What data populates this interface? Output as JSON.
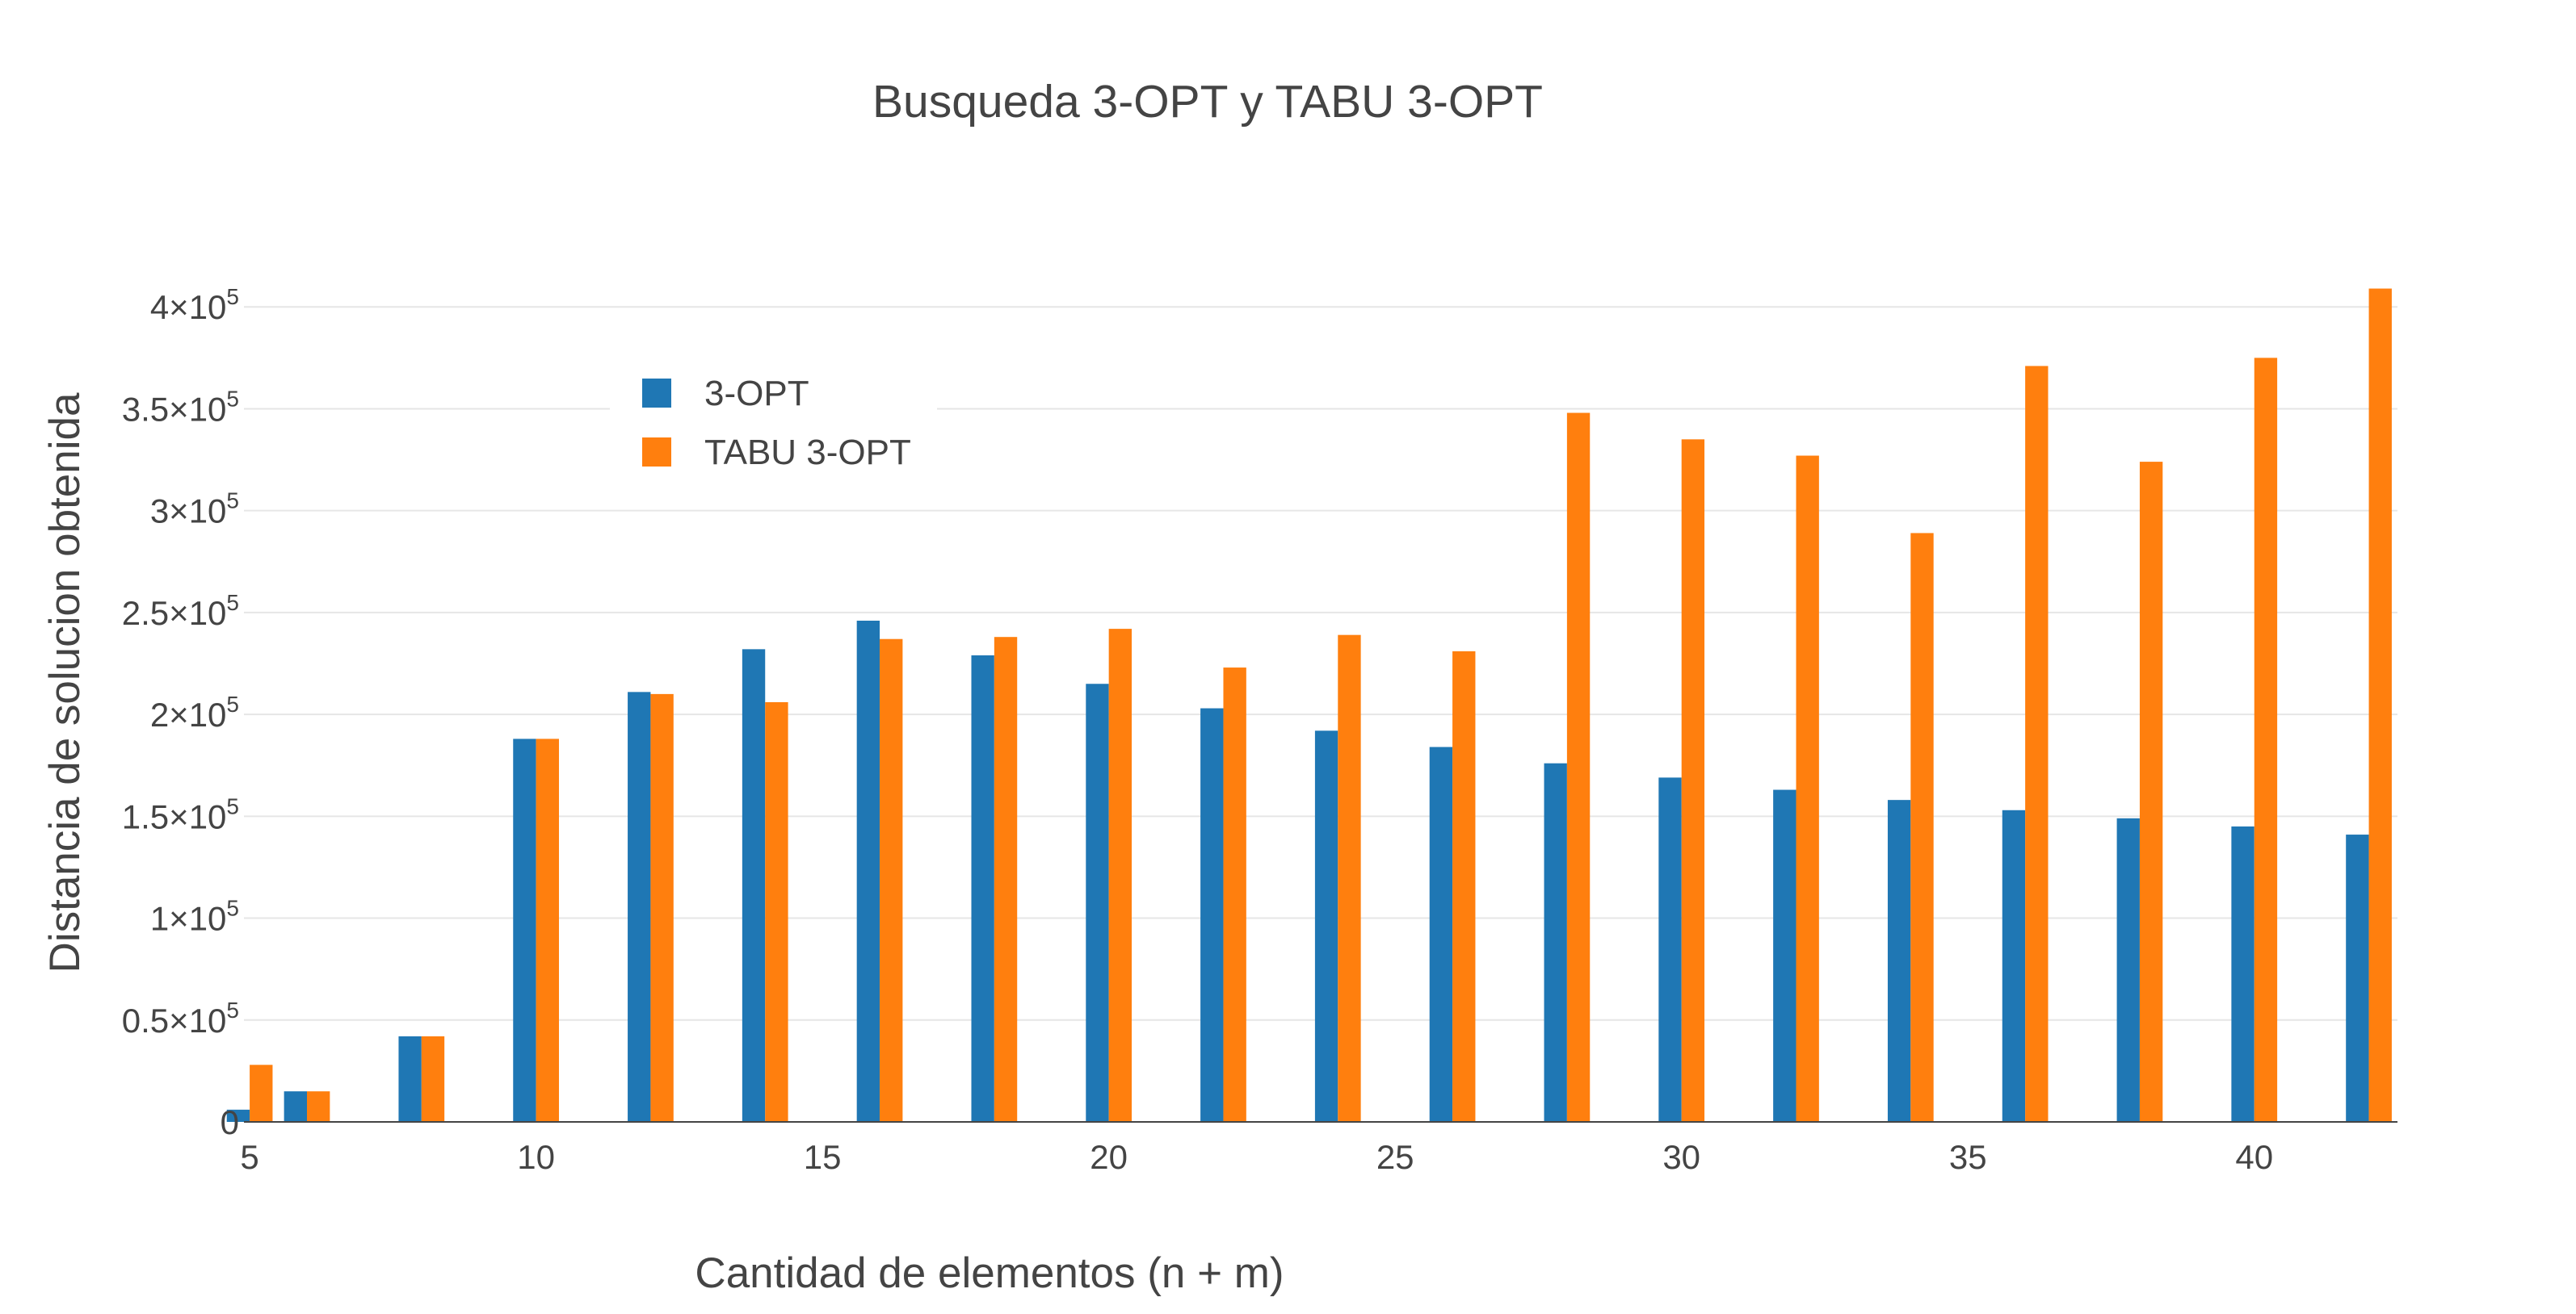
{
  "chart_data": {
    "type": "bar",
    "title": "Busqueda 3-OPT y TABU 3-OPT",
    "xlabel": "Cantidad de elementos (n + m)",
    "ylabel": "Distancia de solucion obtenida",
    "x": [
      5,
      6,
      8,
      10,
      12,
      14,
      16,
      18,
      20,
      22,
      24,
      26,
      28,
      30,
      32,
      34,
      36,
      38,
      40,
      42
    ],
    "x_ticks": [
      5,
      10,
      15,
      20,
      25,
      30,
      35,
      40
    ],
    "x_tick_labels": [
      "5",
      "10",
      "15",
      "20",
      "25",
      "30",
      "35",
      "40"
    ],
    "xlim": [
      4.9,
      42.5
    ],
    "y_ticks": [
      0,
      50000,
      100000,
      150000,
      200000,
      250000,
      300000,
      350000,
      400000
    ],
    "y_tick_labels": [
      {
        "mant": "0",
        "exp": ""
      },
      {
        "mant": "0.5×10",
        "exp": "5"
      },
      {
        "mant": "1×10",
        "exp": "5"
      },
      {
        "mant": "1.5×10",
        "exp": "5"
      },
      {
        "mant": "2×10",
        "exp": "5"
      },
      {
        "mant": "2.5×10",
        "exp": "5"
      },
      {
        "mant": "3×10",
        "exp": "5"
      },
      {
        "mant": "3.5×10",
        "exp": "5"
      },
      {
        "mant": "4×10",
        "exp": "5"
      }
    ],
    "ylim": [
      0,
      410000
    ],
    "grid": true,
    "legend_position": "top-left",
    "series": [
      {
        "name": "3-OPT",
        "color": "#1f77b4",
        "values": [
          6000,
          15000,
          42000,
          188000,
          211000,
          232000,
          246000,
          229000,
          215000,
          203000,
          192000,
          184000,
          176000,
          169000,
          163000,
          158000,
          153000,
          149000,
          145000,
          141000
        ]
      },
      {
        "name": "TABU 3-OPT",
        "color": "#ff7f0e",
        "values": [
          28000,
          15000,
          42000,
          188000,
          210000,
          206000,
          237000,
          238000,
          242000,
          223000,
          239000,
          231000,
          348000,
          335000,
          327000,
          289000,
          371000,
          324000,
          375000,
          409000
        ]
      }
    ]
  }
}
